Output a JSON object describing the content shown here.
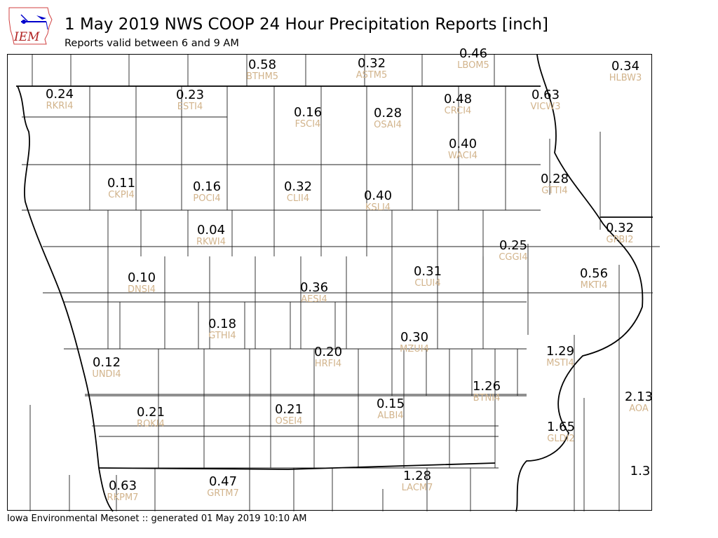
{
  "header": {
    "logo_text": "IEM",
    "title": "1 May 2019 NWS COOP 24 Hour Precipitation Reports [inch]",
    "subtitle": "Reports valid between 6 and 9 AM"
  },
  "colors": {
    "value": "#000000",
    "station_id": "#d2b48c",
    "logo_outline": "#d04040",
    "logo_accent": "#0000cc"
  },
  "stations": [
    {
      "id": "BTHM5",
      "value": "0.58"
    },
    {
      "id": "ASTM5",
      "value": "0.32"
    },
    {
      "id": "LBOM5",
      "value": "0.46"
    },
    {
      "id": "HLBW3",
      "value": "0.34"
    },
    {
      "id": "RKRI4",
      "value": "0.24"
    },
    {
      "id": "ESTI4",
      "value": "0.23"
    },
    {
      "id": "FSCI4",
      "value": "0.16"
    },
    {
      "id": "OSAI4",
      "value": "0.28"
    },
    {
      "id": "CRCI4",
      "value": "0.48"
    },
    {
      "id": "VICW3",
      "value": "0.63"
    },
    {
      "id": "WACI4",
      "value": "0.40"
    },
    {
      "id": "CKPI4",
      "value": "0.11"
    },
    {
      "id": "POCI4",
      "value": "0.16"
    },
    {
      "id": "CLII4",
      "value": "0.32"
    },
    {
      "id": "KSLI4",
      "value": "0.40"
    },
    {
      "id": "GTTI4",
      "value": "0.28"
    },
    {
      "id": "RKWI4",
      "value": "0.04"
    },
    {
      "id": "GPBI2",
      "value": "0.32"
    },
    {
      "id": "CGGI4",
      "value": "0.25"
    },
    {
      "id": "CLUI4",
      "value": "0.31"
    },
    {
      "id": "MKTI4",
      "value": "0.56"
    },
    {
      "id": "DNSI4",
      "value": "0.10"
    },
    {
      "id": "AESI4",
      "value": "0.36"
    },
    {
      "id": "GTHI4",
      "value": "0.18"
    },
    {
      "id": "MZUI4",
      "value": "0.30"
    },
    {
      "id": "HRFI4",
      "value": "0.20"
    },
    {
      "id": "MSTI4",
      "value": "1.29"
    },
    {
      "id": "UNDI4",
      "value": "0.12"
    },
    {
      "id": "BTNI4",
      "value": "1.26"
    },
    {
      "id": "AOA",
      "value": "2.13"
    },
    {
      "id": "ALBI4",
      "value": "0.15"
    },
    {
      "id": "ROKI4",
      "value": "0.21"
    },
    {
      "id": "OSEI4",
      "value": "0.21"
    },
    {
      "id": "GLDI2",
      "value": "1.65"
    },
    {
      "id": "LACM7",
      "value": "1.28"
    },
    {
      "id": "RKPM7",
      "value": "0.63"
    },
    {
      "id": "GRTM7",
      "value": "0.47"
    },
    {
      "id": "",
      "value": "1.3"
    }
  ],
  "footer": "Iowa Environmental Mesonet :: generated 01 May 2019 10:10 AM"
}
